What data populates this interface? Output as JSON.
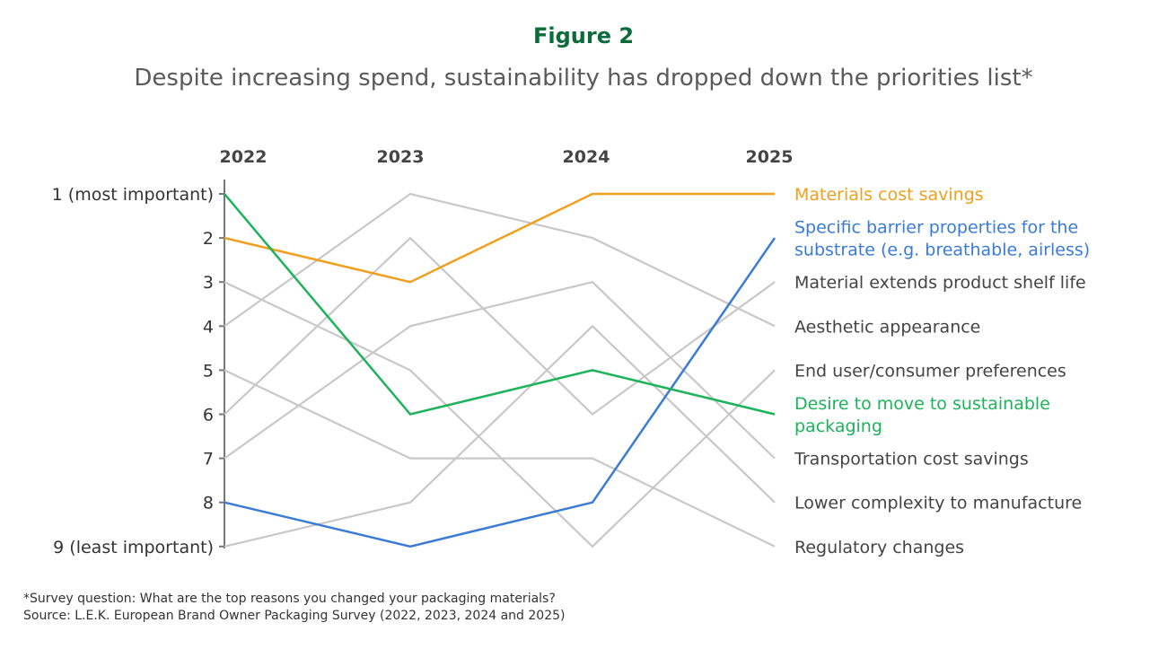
{
  "figure_label": "Figure 2",
  "chart_data": {
    "type": "line",
    "title": "Despite increasing spend, sustainability has dropped down the priorities list*",
    "categories": [
      "2022",
      "2023",
      "2024",
      "2025"
    ],
    "y_ticks": [
      "1 (most important)",
      "2",
      "3",
      "4",
      "5",
      "6",
      "7",
      "8",
      "9 (least important)"
    ],
    "ylim": [
      1,
      9
    ],
    "y_inverted": true,
    "grid": false,
    "legend": "right, labels at line ends",
    "series": [
      {
        "name": "Materials cost savings",
        "values": [
          2,
          3,
          1,
          1
        ],
        "color": "#f0a01e",
        "highlight": true
      },
      {
        "name": "Specific barrier properties for the substrate (e.g. breathable, airless)",
        "label_lines": [
          "Specific barrier properties for the",
          "substrate (e.g. breathable, airless)"
        ],
        "values": [
          8,
          9,
          8,
          2
        ],
        "color": "#3a7bd5",
        "highlight": true
      },
      {
        "name": "Material extends product shelf life",
        "values": [
          6,
          2,
          6,
          3
        ],
        "color": "#c8c8c8",
        "highlight": false
      },
      {
        "name": "Aesthetic appearance",
        "values": [
          4,
          1,
          2,
          4
        ],
        "color": "#c8c8c8",
        "highlight": false
      },
      {
        "name": "End user/consumer preferences",
        "values": [
          3,
          5,
          9,
          5
        ],
        "color": "#c8c8c8",
        "highlight": false
      },
      {
        "name": "Desire to move to sustainable packaging",
        "label_lines": [
          "Desire to move to sustainable",
          "packaging"
        ],
        "values": [
          1,
          6,
          5,
          6
        ],
        "color": "#1db35a",
        "highlight": true
      },
      {
        "name": "Transportation cost savings",
        "values": [
          7,
          4,
          3,
          7
        ],
        "color": "#c8c8c8",
        "highlight": false
      },
      {
        "name": "Lower complexity to manufacture",
        "values": [
          9,
          8,
          4,
          8
        ],
        "color": "#c8c8c8",
        "highlight": false
      },
      {
        "name": "Regulatory changes",
        "values": [
          5,
          7,
          7,
          9
        ],
        "color": "#c8c8c8",
        "highlight": false
      }
    ]
  },
  "footnote": "*Survey question: What are the top reasons you changed your packaging materials?",
  "source": "Source: L.E.K. European Brand Owner Packaging Survey (2022, 2023, 2024 and 2025)"
}
